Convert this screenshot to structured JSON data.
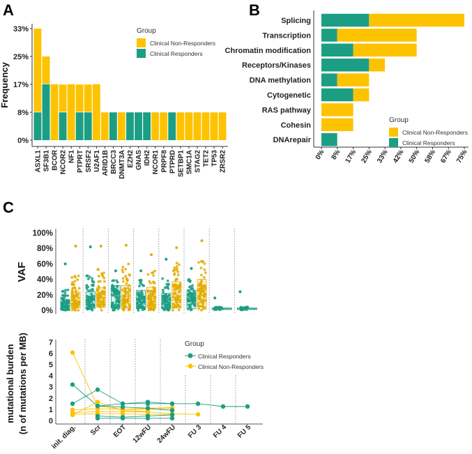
{
  "colors": {
    "responders": "#1b9e83",
    "non_responders": "#fdc300",
    "non_responders_c": "#e3ac00"
  },
  "chart_data": [
    {
      "panel": "A",
      "type": "bar",
      "stacked": true,
      "ylabel": "Frequency",
      "yticks": [
        "0%",
        "8%",
        "17%",
        "25%",
        "33%"
      ],
      "ylim": [
        0,
        33.3
      ],
      "legend": {
        "title": "Group",
        "placement": "top-right",
        "entries": [
          "Clinical Non-Responders",
          "Clinical Responders"
        ]
      },
      "categories": [
        "ASXL1",
        "SF3B1",
        "BCOR",
        "NCOR2",
        "NF1",
        "PTPRT",
        "SRSF2",
        "U2AF1",
        "ARID1B",
        "BRCC3",
        "DNMT3A",
        "EZH2",
        "GNAS",
        "IDH2",
        "NCOR1",
        "PRPF8",
        "PTPRD",
        "SETBP1",
        "SMC1A",
        "STAG2",
        "TET2",
        "TP53",
        "ZRSR2"
      ],
      "series": [
        {
          "name": "Clinical Responders",
          "values": [
            8.3,
            16.7,
            0,
            8.3,
            0,
            8.3,
            8.3,
            0,
            0,
            8.3,
            0,
            8.3,
            8.3,
            8.3,
            0,
            0,
            8.3,
            0,
            0,
            0,
            0,
            0,
            0
          ]
        },
        {
          "name": "Clinical Non-Responders",
          "values": [
            25,
            8.3,
            16.7,
            8.3,
            16.7,
            8.3,
            8.3,
            16.7,
            8.3,
            0,
            8.3,
            0,
            0,
            0,
            8.3,
            8.3,
            0,
            8.3,
            8.3,
            8.3,
            8.3,
            8.3,
            8.3
          ]
        }
      ]
    },
    {
      "panel": "B",
      "type": "bar",
      "orientation": "horizontal",
      "stacked": true,
      "xticks": [
        "0%",
        "8%",
        "17%",
        "25%",
        "33%",
        "42%",
        "50%",
        "58%",
        "67%",
        "75%"
      ],
      "xlim": [
        0,
        75
      ],
      "legend": {
        "title": "Group",
        "placement": "bottom-right",
        "entries": [
          "Clinical Non-Responders",
          "Clinical Responders"
        ]
      },
      "categories": [
        "Splicing",
        "Transcription",
        "Chromatin modification",
        "Receptors/Kinases",
        "DNA methylation",
        "Cytogenetic",
        "RAS pathway",
        "Cohesin",
        "DNArepair"
      ],
      "series": [
        {
          "name": "Clinical Responders",
          "values": [
            25,
            8.3,
            16.7,
            25,
            8.3,
            16.7,
            0,
            0,
            8.3
          ]
        },
        {
          "name": "Clinical Non-Responders",
          "values": [
            50,
            41.7,
            33.3,
            8.3,
            16.7,
            8.3,
            16.7,
            16.7,
            0
          ]
        }
      ]
    },
    {
      "panel": "C-top",
      "type": "box",
      "ylabel": "VAF",
      "yticks": [
        "0%",
        "20%",
        "40%",
        "60%",
        "80%",
        "100%"
      ],
      "ylim": [
        0,
        100
      ],
      "timepoints": [
        "init. diag.",
        "Scr",
        "EOT",
        "12wFU",
        "24wFU",
        "FU 3",
        "FU 4",
        "FU 5"
      ],
      "series": [
        {
          "name": "Clinical Responders",
          "boxes": [
            {
              "q1": 3,
              "median": 7,
              "q3": 14,
              "max": 60
            },
            {
              "q1": 2,
              "median": 7,
              "q3": 24,
              "max": 82
            },
            {
              "q1": 3,
              "median": 8,
              "q3": 32,
              "max": 51
            },
            {
              "q1": 3,
              "median": 8,
              "q3": 26,
              "max": 51
            },
            {
              "q1": 2,
              "median": 8,
              "q3": 22,
              "max": 66
            },
            {
              "q1": 2,
              "median": 8,
              "q3": 26,
              "max": 54
            },
            {
              "q1": 1,
              "median": 2,
              "q3": 3,
              "max": 16
            },
            {
              "q1": 1,
              "median": 2,
              "q3": 3,
              "max": 24
            }
          ]
        },
        {
          "name": "Clinical Non-Responders",
          "boxes": [
            {
              "q1": 3,
              "median": 8,
              "q3": 24,
              "max": 83
            },
            {
              "q1": 4,
              "median": 16,
              "q3": 29,
              "max": 83
            },
            {
              "q1": 3,
              "median": 18,
              "q3": 32,
              "max": 84
            },
            {
              "q1": 3,
              "median": 16,
              "q3": 30,
              "max": 72
            },
            {
              "q1": 3,
              "median": 13,
              "q3": 37,
              "max": 81
            },
            {
              "q1": 5,
              "median": 26,
              "q3": 40,
              "max": 90
            },
            null,
            null
          ]
        }
      ]
    },
    {
      "panel": "C-bottom",
      "type": "line",
      "ylabel": [
        "mutational burden",
        "(n of mutations per MB)"
      ],
      "yticks": [
        "0",
        "1",
        "2",
        "3",
        "4",
        "5",
        "6",
        "7"
      ],
      "ylim": [
        0,
        7
      ],
      "categories": [
        "init. diag.",
        "Scr",
        "EOT",
        "12wFU",
        "24wFU",
        "FU 3",
        "FU 4",
        "FU 5"
      ],
      "legend": {
        "title": "Group",
        "placement": "top-right",
        "entries": [
          "Clinical Responders",
          "Clinical Non-Responders"
        ]
      },
      "series": [
        {
          "group": "Clinical Responders",
          "values": [
            3.2,
            1.3,
            1.2,
            1.1,
            0.9,
            null,
            null,
            null
          ]
        },
        {
          "group": "Clinical Responders",
          "values": [
            1.5,
            2.75,
            1.5,
            1.5,
            1.5,
            1.5,
            1.25,
            1.25
          ]
        },
        {
          "group": "Clinical Responders",
          "values": [
            null,
            1.3,
            1.5,
            1.65,
            1.5,
            null,
            null,
            null
          ]
        },
        {
          "group": "Clinical Responders",
          "values": [
            null,
            0.4,
            0.3,
            0.4,
            0.5,
            null,
            null,
            null
          ]
        },
        {
          "group": "Clinical Responders",
          "values": [
            null,
            0.2,
            0.2,
            0.2,
            0.2,
            null,
            null,
            null
          ]
        },
        {
          "group": "Clinical Non-Responders",
          "values": [
            6.05,
            1.3,
            1.0,
            1.1,
            1.15,
            null,
            null,
            null
          ]
        },
        {
          "group": "Clinical Non-Responders",
          "values": [
            0.5,
            1.65,
            0.9,
            0.8,
            null,
            null,
            null,
            null
          ]
        },
        {
          "group": "Clinical Non-Responders",
          "values": [
            0.95,
            1.05,
            1.0,
            1.0,
            1.1,
            null,
            null,
            null
          ]
        },
        {
          "group": "Clinical Non-Responders",
          "values": [
            0.7,
            0.8,
            0.8,
            0.75,
            0.6,
            0.55,
            null,
            null
          ]
        },
        {
          "group": "Clinical Non-Responders",
          "values": [
            0.55,
            0.6,
            0.6,
            0.55,
            0.55,
            null,
            null,
            null
          ]
        }
      ]
    }
  ],
  "panels": {
    "a": "A",
    "b": "B",
    "c": "C"
  }
}
